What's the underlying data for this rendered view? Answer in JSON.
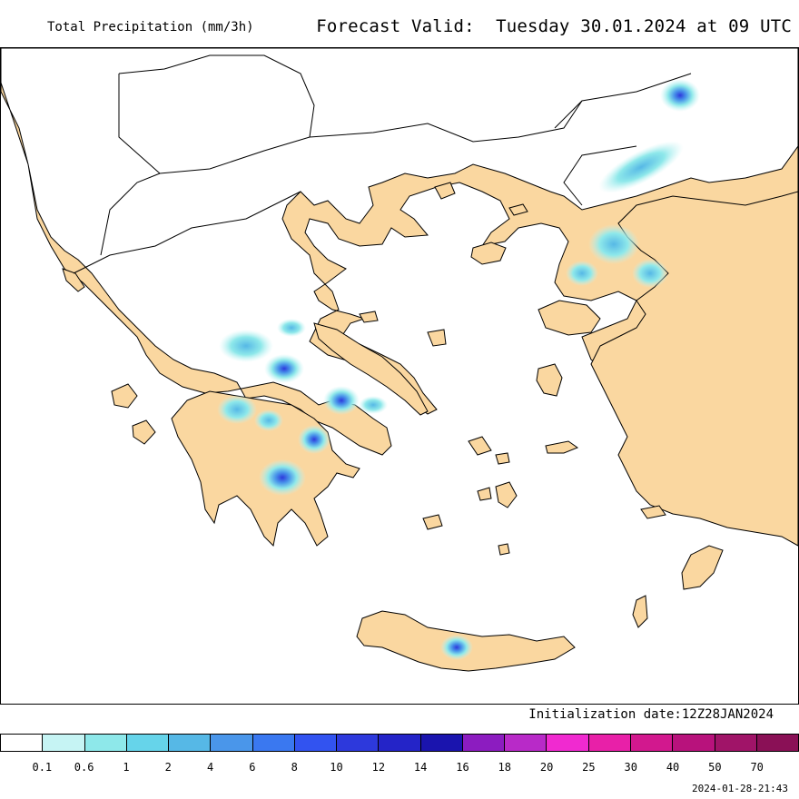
{
  "header": {
    "product_title": "Total Precipitation (mm/3h)",
    "forecast_label": "Forecast Valid:",
    "forecast_valid": "Tuesday 30.01.2024 at 09 UTC"
  },
  "footer": {
    "initialization": "Initialization date:12Z28JAN2024",
    "generated_timestamp": "2024-01-28-21:43"
  },
  "map": {
    "region": "Greece / Aegean Sea",
    "colors": {
      "land": "#fad7a0",
      "sea": "#ffffff",
      "border": "#000000"
    },
    "labels": {}
  },
  "legend": {
    "colors": [
      "#ffffff",
      "#c6f4f4",
      "#8ee8ea",
      "#66d4ea",
      "#56b8e6",
      "#4a96ea",
      "#3a78f0",
      "#3253f0",
      "#2d39dc",
      "#2424c8",
      "#1a14ae",
      "#8c1cc0",
      "#b82ac8",
      "#f02ad0",
      "#e820a8",
      "#d2188e",
      "#b8127c",
      "#a01468",
      "#8a1056"
    ],
    "ticks": [
      "0.1",
      "0.6",
      "1",
      "2",
      "4",
      "6",
      "8",
      "10",
      "12",
      "14",
      "16",
      "18",
      "20",
      "25",
      "30",
      "40",
      "50",
      "70"
    ]
  }
}
